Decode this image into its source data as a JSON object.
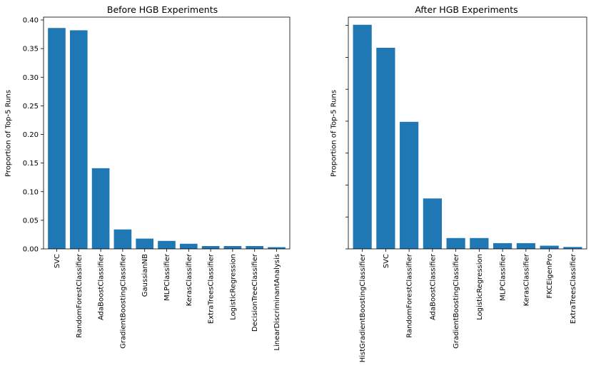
{
  "chart_data": [
    {
      "type": "bar",
      "title": "Before HGB Experiments",
      "xlabel": "",
      "ylabel": "Proportion of Top-5 Runs",
      "ylim": [
        0,
        0.405
      ],
      "yticks": [
        0.0,
        0.05,
        0.1,
        0.15,
        0.2,
        0.25,
        0.3,
        0.35,
        0.4
      ],
      "ytick_labels": [
        "0.00",
        "0.05",
        "0.10",
        "0.15",
        "0.20",
        "0.25",
        "0.30",
        "0.35",
        "0.40"
      ],
      "categories": [
        "SVC",
        "RandomForestClassifier",
        "AdaBoostClassifier",
        "GradientBoostingClassifier",
        "GaussianNB",
        "MLPClassifier",
        "KerasClassifier",
        "ExtraTreesClassifier",
        "LogisticRegression",
        "DecisionTreeClassifier",
        "LinearDiscriminantAnalysis"
      ],
      "values": [
        0.386,
        0.382,
        0.141,
        0.034,
        0.018,
        0.014,
        0.009,
        0.005,
        0.005,
        0.005,
        0.003
      ],
      "bar_color": "#1f77b4",
      "grid": false
    },
    {
      "type": "bar",
      "title": "After HGB Experiments",
      "xlabel": "",
      "ylabel": "Proportion of Top-5 Runs",
      "ylim": [
        0,
        0.363
      ],
      "yticks": [
        0.0,
        0.05,
        0.1,
        0.15,
        0.2,
        0.25,
        0.3,
        0.35
      ],
      "ytick_labels": [
        "",
        "",
        "",
        "",
        "",
        "",
        "",
        ""
      ],
      "categories": [
        "HistGradientBoostingClassifier",
        "SVC",
        "RandomForestClassifier",
        "AdaBoostClassifier",
        "GradientBoostingClassifier",
        "LogisticRegression",
        "MLPClassifier",
        "KerasClassifier",
        "FKCEigenPro",
        "ExtraTreesClassifier"
      ],
      "values": [
        0.351,
        0.315,
        0.199,
        0.079,
        0.017,
        0.017,
        0.009,
        0.009,
        0.005,
        0.003
      ],
      "bar_color": "#1f77b4",
      "grid": false
    }
  ]
}
